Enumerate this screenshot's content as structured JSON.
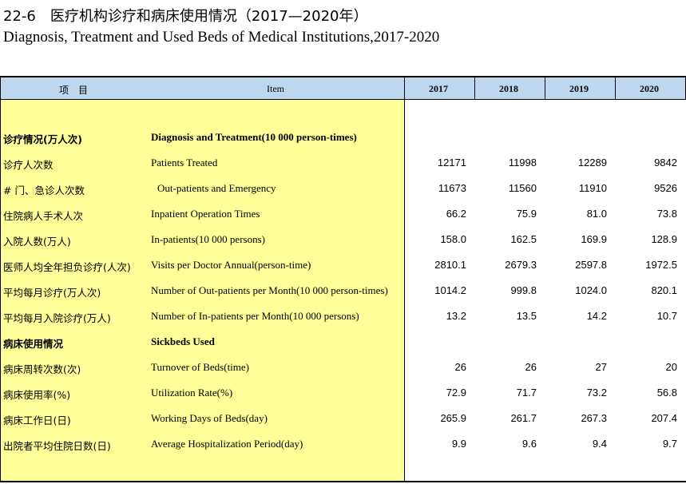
{
  "title": {
    "cn": "22-6　医疗机构诊疗和病床使用情况（2017—2020年）",
    "en": "Diagnosis, Treatment and Used Beds of Medical Institutions,2017-2020"
  },
  "header": {
    "item_cn": "项　目",
    "item_en": "Item",
    "years": [
      "2017",
      "2018",
      "2019",
      "2020"
    ]
  },
  "rows": [
    {
      "cn": "诊疗情况(万人次)",
      "en": "Diagnosis and Treatment(10 000 person-times)",
      "values": [
        "",
        "",
        "",
        ""
      ],
      "section": true
    },
    {
      "cn": "诊疗人次数",
      "en": "Patients Treated",
      "values": [
        "12171",
        "11998",
        "12289",
        "9842"
      ]
    },
    {
      "cn": "# 门、急诊人次数",
      "en": "Out-patients and Emergency",
      "values": [
        "11673",
        "11560",
        "11910",
        "9526"
      ],
      "indent": true
    },
    {
      "cn": "住院病人手术人次",
      "en": "Inpatient Operation Times",
      "values": [
        "66.2",
        "75.9",
        "81.0",
        "73.8"
      ]
    },
    {
      "cn": "入院人数(万人)",
      "en": "In-patients(10 000 persons)",
      "values": [
        "158.0",
        "162.5",
        "169.9",
        "128.9"
      ]
    },
    {
      "cn": "医师人均全年担负诊疗(人次)",
      "en": "Visits per Doctor Annual(person-time)",
      "values": [
        "2810.1",
        "2679.3",
        "2597.8",
        "1972.5"
      ]
    },
    {
      "cn": "平均每月诊疗(万人次)",
      "en": "Number of Out-patients per Month(10 000 person-times)",
      "values": [
        "1014.2",
        "999.8",
        "1024.0",
        "820.1"
      ]
    },
    {
      "cn": "平均每月入院诊疗(万人)",
      "en": "Number of In-patients per Month(10 000 persons)",
      "values": [
        "13.2",
        "13.5",
        "14.2",
        "10.7"
      ]
    },
    {
      "cn": "病床使用情况",
      "en": "Sickbeds Used",
      "values": [
        "",
        "",
        "",
        ""
      ],
      "section": true
    },
    {
      "cn": "病床周转次数(次)",
      "en": "Turnover of Beds(time)",
      "values": [
        "26",
        "26",
        "27",
        "20"
      ]
    },
    {
      "cn": "病床使用率(%)",
      "en": "Utilization Rate(%)",
      "values": [
        "72.9",
        "71.7",
        "73.2",
        "56.8"
      ]
    },
    {
      "cn": "病床工作日(日)",
      "en": "Working Days of Beds(day)",
      "values": [
        "265.9",
        "261.7",
        "267.3",
        "207.4"
      ]
    },
    {
      "cn": "出院者平均住院日数(日)",
      "en": "Average Hospitalization Period(day)",
      "values": [
        "9.9",
        "9.6",
        "9.4",
        "9.7"
      ]
    }
  ]
}
